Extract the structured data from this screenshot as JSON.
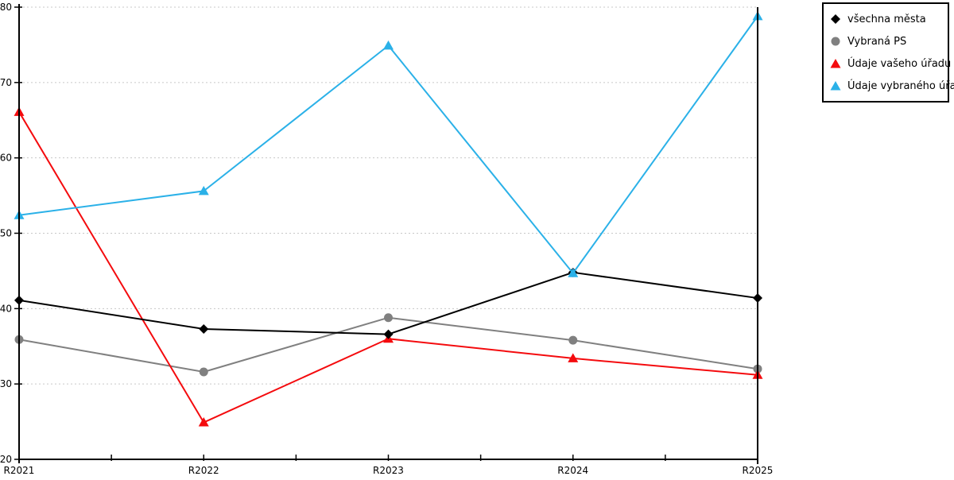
{
  "chart_data": {
    "type": "line",
    "title": "",
    "xlabel": "",
    "ylabel": "",
    "categories": [
      "R2021",
      "R2022",
      "R2023",
      "R2024",
      "R2025"
    ],
    "series": [
      {
        "name": "všechna města",
        "color": "#000000",
        "marker": "diamond",
        "values": [
          41.1,
          37.3,
          36.6,
          44.8,
          41.4
        ]
      },
      {
        "name": "Vybraná PS",
        "color": "#808080",
        "marker": "circle",
        "values": [
          35.9,
          31.6,
          38.8,
          35.8,
          32.0
        ]
      },
      {
        "name": "Údaje vašeho úřadu",
        "color": "#f40b0e",
        "marker": "triangle",
        "values": [
          66.1,
          24.9,
          36.0,
          33.4,
          31.2
        ]
      },
      {
        "name": "Údaje vybraného úřadu",
        "color": "#2bb1e8",
        "marker": "triangle",
        "values": [
          52.4,
          55.6,
          74.9,
          44.7,
          78.8
        ]
      }
    ],
    "draw_order": [
      1,
      2,
      0,
      3
    ],
    "ylim": [
      20,
      80
    ],
    "ytick_step": 10,
    "ytick_labels": [
      "20",
      "30",
      "40",
      "50",
      "60",
      "70",
      "80"
    ],
    "grid": "horizontal-dotted",
    "grid_color": "#c8c8c8",
    "axis_color": "#000000",
    "legend_position": "top-right"
  }
}
